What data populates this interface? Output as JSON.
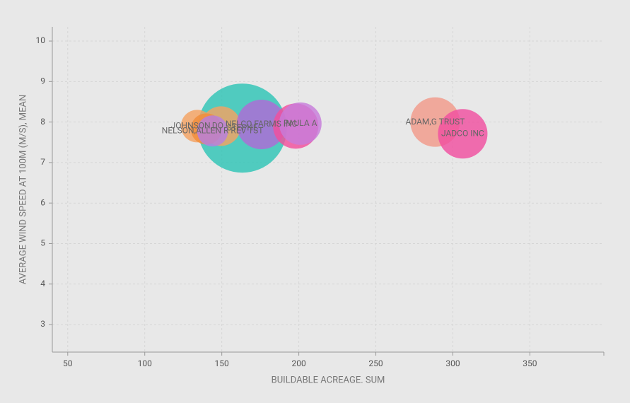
{
  "chart_data": {
    "type": "bubble",
    "x_label": "BUILDABLE ACREAGE. SUM",
    "y_label": "AVERAGE WIND SPEED AT 100M (M/S), MEAN",
    "x": [
      163.3,
      134,
      149.5,
      140,
      144,
      175.7,
      198,
      201,
      288.5,
      306.4
    ],
    "values": [
      7.85,
      7.9,
      7.9,
      7.83,
      7.78,
      7.94,
      7.9,
      7.96,
      8.0,
      7.71
    ],
    "sizes": [
      100,
      13.3,
      19.8,
      12.2,
      12.2,
      30.9,
      25.8,
      22.7,
      30.9,
      30.9
    ],
    "labels": [
      "STEPHE",
      "JOHNSON,DO",
      null,
      null,
      "NELSON,ALLEN R REV TST",
      "NELCO FARMS INC",
      null,
      "PAULA A",
      "ADAM,G TRUST",
      "JADCO INC"
    ],
    "colors": [
      "#2ec4b6",
      "#f4a261",
      "#f4a261",
      "#f08c3a",
      "#b67fe0",
      "#b06ad6",
      "#f24f9c",
      "#c77ddb",
      "#f29a8a",
      "#f04fa0"
    ],
    "xlim": [
      40,
      398
    ],
    "ylim": [
      2.32,
      10.35
    ],
    "xticks": [
      50,
      100,
      150,
      200,
      250,
      300,
      350
    ],
    "yticks": [
      3,
      4,
      5,
      6,
      7,
      8,
      9,
      10
    ],
    "grid": true
  }
}
